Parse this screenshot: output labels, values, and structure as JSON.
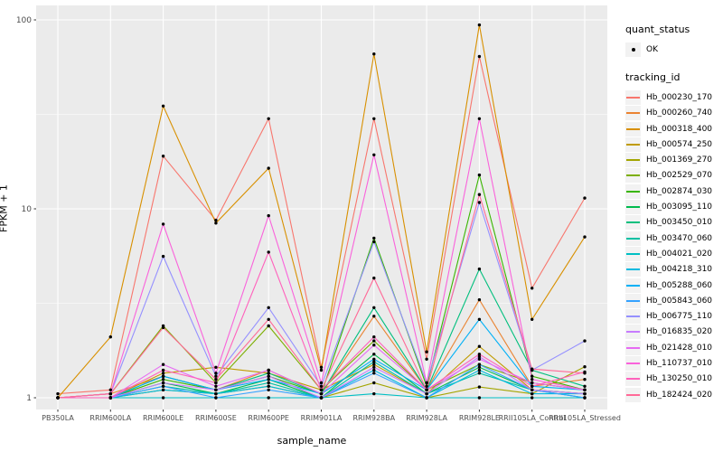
{
  "figure": {
    "panel_bg": "#EBEBEB",
    "grid_color": "#FFFFFF",
    "tick_color": "#333333",
    "tick_label_color": "#4D4D4D",
    "point_color": "#000000",
    "legend_key_bg": "#F2F2F2"
  },
  "axes": {
    "x_title": "sample_name",
    "y_title": "FPKM + 1",
    "y_tick_labels": [
      "1",
      "10",
      "100"
    ]
  },
  "legend": {
    "quant_title": "quant_status",
    "quant_items": [
      {
        "label": "OK",
        "symbol": "point"
      }
    ],
    "tracking_title": "tracking_id"
  },
  "chart_data": {
    "type": "line",
    "xlabel": "sample_name",
    "ylabel": "FPKM + 1",
    "y_scale": "log10",
    "ylim": [
      1,
      100
    ],
    "y_major_ticks": [
      1,
      10,
      100
    ],
    "y_minor_gridlines": [
      3.1623,
      31.623
    ],
    "grid": "on",
    "legend_position": "right",
    "point_marker": "black dot on every vertex",
    "categories": [
      "PB350LA",
      "RRIM600LA",
      "RRIM600LE",
      "RRIM600SE",
      "RRIM600PE",
      "RRIM901LA",
      "RRIM928BA",
      "RRIM928LA",
      "RRIM928LE",
      "RRII105LA_Control",
      "RRII105LA_Stressed"
    ],
    "series": [
      {
        "name": "Hb_000230_170",
        "color": "#F8766D",
        "values": [
          1.05,
          1.1,
          19.0,
          8.7,
          30.0,
          1.45,
          30.0,
          1.6,
          64.0,
          3.8,
          11.4
        ]
      },
      {
        "name": "Hb_000260_740",
        "color": "#EA8331",
        "values": [
          1.0,
          1.05,
          1.3,
          1.1,
          1.4,
          1.05,
          2.7,
          1.1,
          3.3,
          1.15,
          1.25
        ]
      },
      {
        "name": "Hb_000318_400",
        "color": "#D89000",
        "values": [
          1.0,
          2.1,
          35.0,
          8.4,
          16.4,
          1.4,
          66.0,
          1.75,
          94.0,
          2.6,
          7.1
        ]
      },
      {
        "name": "Hb_000574_250",
        "color": "#C09B00",
        "values": [
          1.0,
          1.0,
          1.35,
          1.45,
          1.35,
          1.1,
          1.5,
          1.05,
          1.87,
          1.1,
          1.05
        ]
      },
      {
        "name": "Hb_001369_270",
        "color": "#A3A500",
        "values": [
          1.0,
          1.0,
          1.1,
          1.05,
          1.15,
          1.0,
          1.2,
          1.0,
          1.14,
          1.05,
          1.46
        ]
      },
      {
        "name": "Hb_002529_070",
        "color": "#7CAE00",
        "values": [
          1.0,
          1.05,
          2.4,
          1.2,
          2.4,
          1.1,
          2.0,
          1.1,
          1.5,
          1.2,
          1.1
        ]
      },
      {
        "name": "Hb_002874_030",
        "color": "#39B600",
        "values": [
          1.0,
          1.0,
          1.25,
          1.1,
          1.3,
          1.05,
          7.0,
          1.15,
          15.1,
          1.3,
          1.1
        ]
      },
      {
        "name": "Hb_003095_110",
        "color": "#00BB4E",
        "values": [
          1.0,
          1.0,
          1.2,
          1.05,
          1.25,
          1.0,
          1.7,
          1.05,
          1.45,
          1.1,
          1.05
        ]
      },
      {
        "name": "Hb_003450_010",
        "color": "#00BF7D",
        "values": [
          1.0,
          1.0,
          1.3,
          1.1,
          1.35,
          1.05,
          3.0,
          1.1,
          4.8,
          1.4,
          1.15
        ]
      },
      {
        "name": "Hb_003470_060",
        "color": "#00C1A3",
        "values": [
          1.0,
          1.0,
          1.15,
          1.05,
          1.2,
          1.0,
          1.55,
          1.05,
          1.35,
          1.1,
          1.0
        ]
      },
      {
        "name": "Hb_004021_020",
        "color": "#00BFC4",
        "values": [
          1.0,
          1.0,
          1.0,
          1.0,
          1.0,
          1.0,
          1.05,
          1.0,
          1.0,
          1.0,
          1.0
        ]
      },
      {
        "name": "Hb_004218_310",
        "color": "#00BAE0",
        "values": [
          1.0,
          1.0,
          1.1,
          1.05,
          1.15,
          1.0,
          1.4,
          1.0,
          1.4,
          1.05,
          1.05
        ]
      },
      {
        "name": "Hb_005288_060",
        "color": "#00B0F6",
        "values": [
          1.0,
          1.0,
          1.3,
          1.1,
          1.25,
          1.05,
          1.6,
          1.1,
          2.6,
          1.15,
          1.1
        ]
      },
      {
        "name": "Hb_005843_060",
        "color": "#35A2FF",
        "values": [
          1.0,
          1.0,
          1.15,
          1.0,
          1.1,
          1.0,
          1.35,
          1.0,
          1.5,
          1.1,
          1.0
        ]
      },
      {
        "name": "Hb_006775_110",
        "color": "#9590FF",
        "values": [
          1.0,
          1.05,
          5.6,
          1.3,
          3.0,
          1.15,
          6.7,
          1.2,
          10.8,
          1.4,
          2.0
        ]
      },
      {
        "name": "Hb_016835_020",
        "color": "#C77CFF",
        "values": [
          1.0,
          1.0,
          1.2,
          1.1,
          1.3,
          1.0,
          1.45,
          1.05,
          1.65,
          1.1,
          1.05
        ]
      },
      {
        "name": "Hb_021428_010",
        "color": "#E76BF3",
        "values": [
          1.0,
          1.0,
          1.5,
          1.15,
          1.4,
          1.05,
          1.9,
          1.1,
          1.6,
          1.2,
          1.1
        ]
      },
      {
        "name": "Hb_110737_010",
        "color": "#FA62DB",
        "values": [
          1.0,
          1.05,
          8.3,
          1.35,
          9.2,
          1.2,
          19.3,
          1.2,
          30.0,
          1.25,
          1.1
        ]
      },
      {
        "name": "Hb_130250_010",
        "color": "#FF62BC",
        "values": [
          1.0,
          1.0,
          1.4,
          1.2,
          5.9,
          1.1,
          2.1,
          1.1,
          1.7,
          1.15,
          1.37
        ]
      },
      {
        "name": "Hb_182424_020",
        "color": "#FF6A98",
        "values": [
          1.0,
          1.05,
          2.35,
          1.25,
          2.6,
          1.1,
          4.3,
          1.1,
          11.9,
          1.42,
          1.35
        ]
      }
    ]
  }
}
